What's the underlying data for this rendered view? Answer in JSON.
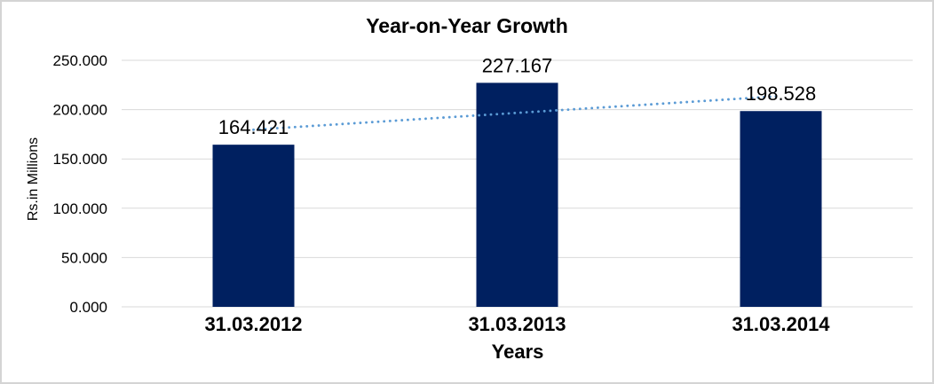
{
  "chart_data": {
    "type": "bar",
    "title": "Year-on-Year Growth",
    "xlabel": "Years",
    "ylabel": "Rs.in Millions",
    "categories": [
      "31.03.2012",
      "31.03.2013",
      "31.03.2014"
    ],
    "values": [
      164.421,
      227.167,
      198.528
    ],
    "data_labels": [
      "164.421",
      "227.167",
      "198.528"
    ],
    "ylim": [
      0,
      250
    ],
    "ytick_step": 50,
    "ytick_labels": [
      "0.000",
      "50.000",
      "100.000",
      "150.000",
      "200.000",
      "250.000"
    ],
    "grid": "horizontal-gridlines",
    "legend": "none",
    "trendline": {
      "type": "linear",
      "style": "dotted"
    },
    "colors": {
      "bar": "#002060",
      "trendline": "#5b9bd5",
      "gridline": "#d9d9d9",
      "text": "#000000",
      "border": "#d4d4d4",
      "background": "#ffffff"
    }
  }
}
